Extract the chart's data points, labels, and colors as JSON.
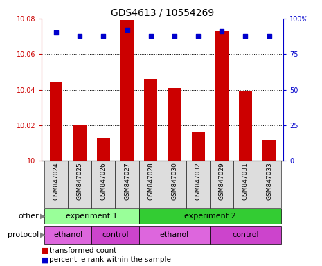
{
  "title": "GDS4613 / 10554269",
  "samples": [
    "GSM847024",
    "GSM847025",
    "GSM847026",
    "GSM847027",
    "GSM847028",
    "GSM847030",
    "GSM847032",
    "GSM847029",
    "GSM847031",
    "GSM847033"
  ],
  "transformed_count": [
    10.044,
    10.02,
    10.013,
    10.079,
    10.046,
    10.041,
    10.016,
    10.073,
    10.039,
    10.012
  ],
  "percentile_rank": [
    90,
    88,
    88,
    92,
    88,
    88,
    88,
    91,
    88,
    88
  ],
  "y_min": 10.0,
  "y_max": 10.08,
  "y_ticks_left": [
    10,
    10.02,
    10.04,
    10.06,
    10.08
  ],
  "y_ticks_right": [
    0,
    25,
    50,
    75,
    100
  ],
  "bar_color": "#cc0000",
  "dot_color": "#0000cc",
  "bg_color": "#ffffff",
  "experiment1_color": "#99ff99",
  "experiment2_color": "#33cc33",
  "ethanol_color": "#dd66dd",
  "control_color": "#cc44cc",
  "other_label": "other",
  "protocol_label": "protocol",
  "legend_bar_label": "transformed count",
  "legend_dot_label": "percentile rank within the sample",
  "title_fontsize": 10,
  "tick_label_fontsize": 7,
  "sample_label_fontsize": 6.5,
  "row_label_fontsize": 8,
  "annotation_fontsize": 7.5,
  "legend_fontsize": 7.5
}
